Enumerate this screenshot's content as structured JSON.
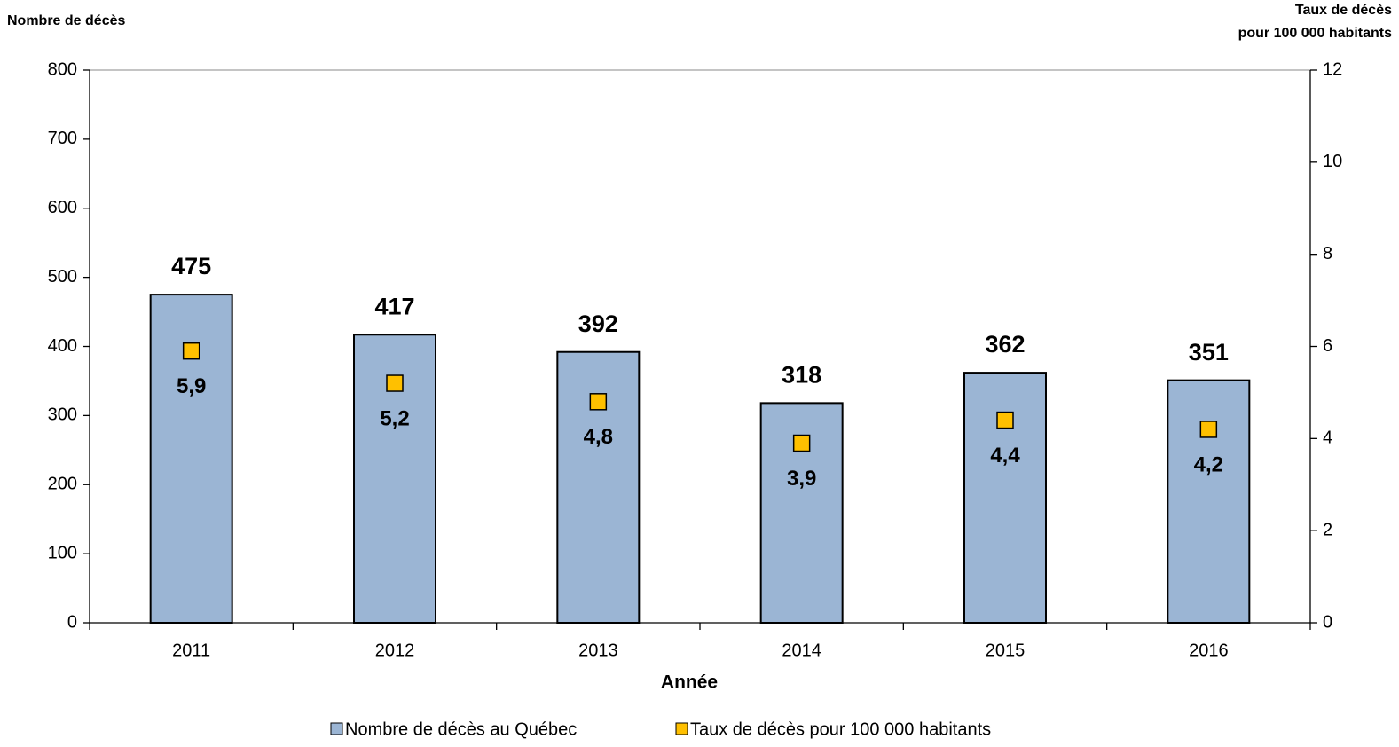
{
  "chart_data": {
    "type": "bar",
    "y_label": "Nombre de décès",
    "y2_label": [
      "Taux de décès",
      "pour 100 000 habitants"
    ],
    "x_label": "Année",
    "categories": [
      "2011",
      "2012",
      "2013",
      "2014",
      "2015",
      "2016"
    ],
    "series": [
      {
        "name": "Nombre de décès au Québec",
        "type": "bar",
        "color": "#9bb5d4",
        "values": [
          475,
          417,
          392,
          318,
          362,
          351
        ]
      },
      {
        "name": "Taux de décès pour 100 000 habitants",
        "type": "scatter",
        "axis": "y2",
        "color": "#ffc000",
        "values": [
          5.9,
          5.2,
          4.8,
          3.9,
          4.4,
          4.2
        ],
        "value_labels": [
          "5,9",
          "5,2",
          "4,8",
          "3,9",
          "4,4",
          "4,2"
        ]
      }
    ],
    "ylim": [
      0,
      800
    ],
    "yticks": [
      0,
      100,
      200,
      300,
      400,
      500,
      600,
      700,
      800
    ],
    "y2lim": [
      0,
      12
    ],
    "y2ticks": [
      0,
      2,
      4,
      6,
      8,
      10,
      12
    ],
    "legend": "bottom"
  }
}
